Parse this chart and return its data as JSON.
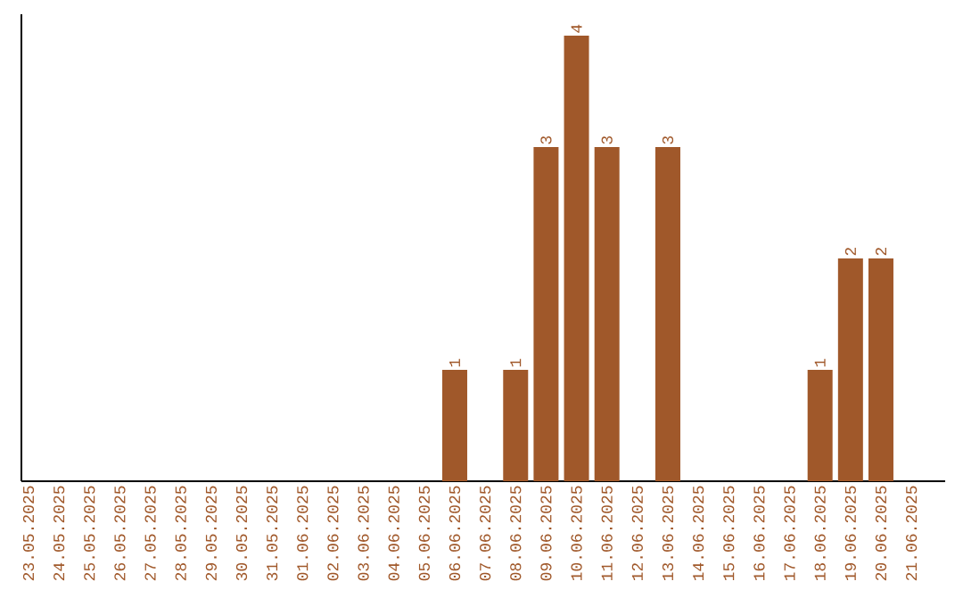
{
  "chart_data": {
    "type": "bar",
    "categories": [
      "23.05.2025",
      "24.05.2025",
      "25.05.2025",
      "26.05.2025",
      "27.05.2025",
      "28.05.2025",
      "29.05.2025",
      "30.05.2025",
      "31.05.2025",
      "01.06.2025",
      "02.06.2025",
      "03.06.2025",
      "04.06.2025",
      "05.06.2025",
      "06.06.2025",
      "07.06.2025",
      "08.06.2025",
      "09.06.2025",
      "10.06.2025",
      "11.06.2025",
      "12.06.2025",
      "13.06.2025",
      "14.06.2025",
      "15.06.2025",
      "16.06.2025",
      "17.06.2025",
      "18.06.2025",
      "19.06.2025",
      "20.06.2025",
      "21.06.2025"
    ],
    "values": [
      null,
      null,
      null,
      null,
      null,
      null,
      null,
      null,
      null,
      null,
      null,
      null,
      null,
      null,
      1,
      null,
      1,
      3,
      4,
      3,
      null,
      3,
      null,
      null,
      null,
      null,
      1,
      2,
      2,
      null
    ],
    "data_labels": true,
    "color": "#a0582a",
    "grid": false,
    "tick_labels": "x"
  }
}
